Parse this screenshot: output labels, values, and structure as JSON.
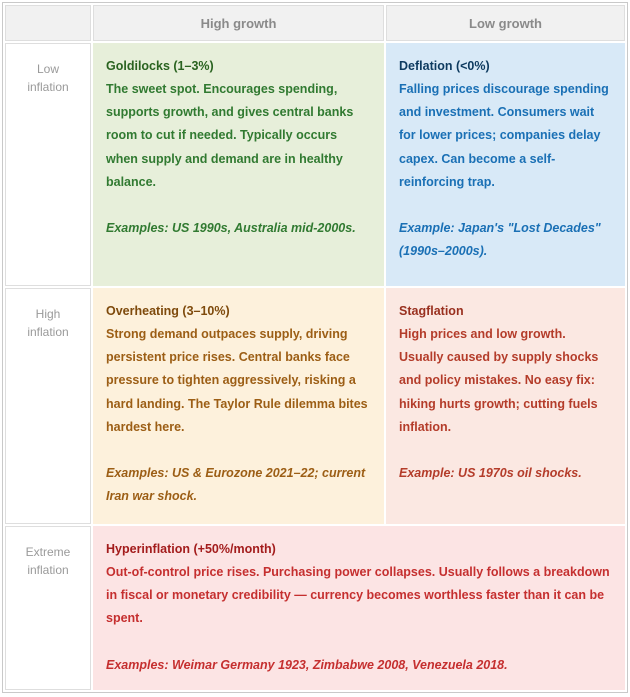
{
  "matrix": {
    "column_headers": [
      "High growth",
      "Low growth"
    ],
    "rows": [
      {
        "label": "Low inflation",
        "cells": [
          {
            "name": "goldilocks",
            "title": "Goldilocks (1–3%)",
            "body": "The sweet spot. Encourages spending, supports growth, and gives central banks room to cut if needed. Typically occurs when supply and demand are in healthy balance.",
            "examples": "Examples: US 1990s, Australia mid-2000s."
          },
          {
            "name": "deflation",
            "title": "Deflation (<0%)",
            "body": "Falling prices discourage spending and investment. Consumers wait for lower prices; companies delay capex. Can become a self-reinforcing trap.",
            "examples": "Example: Japan's \"Lost Decades\" (1990s–2000s)."
          }
        ]
      },
      {
        "label": "High inflation",
        "cells": [
          {
            "name": "overheating",
            "title": "Overheating (3–10%)",
            "body": "Strong demand outpaces supply, driving persistent price rises. Central banks face pressure to tighten aggressively, risking a hard landing. The Taylor Rule dilemma bites hardest here.",
            "examples": "Examples: US & Eurozone 2021–22; current Iran war shock."
          },
          {
            "name": "stagflation",
            "title": "Stagflation",
            "body": "High prices and low growth. Usually caused by supply shocks and policy mistakes. No easy fix: hiking hurts growth; cutting fuels inflation.",
            "examples": "Example: US 1970s oil shocks."
          }
        ]
      },
      {
        "label": "Extreme inflation",
        "cells": [
          {
            "name": "hyperinflation",
            "title": "Hyperinflation (+50%/month)",
            "body": "Out-of-control price rises. Purchasing power collapses. Usually follows a breakdown in fiscal or monetary credibility — currency becomes worthless faster than it can be spent.",
            "examples": "Examples: Weimar Germany 1923, Zimbabwe 2008, Venezuela 2018."
          }
        ]
      }
    ]
  },
  "colors": {
    "border": "#c9c9c9",
    "cell_border": "#dedede",
    "header_bg": "#f1f1f1",
    "header_text": "#8a8a8a",
    "label_text": "#9a9a9a",
    "goldilocks_bg": "#e7efda",
    "goldilocks_title": "#2a6320",
    "goldilocks_text": "#317a31",
    "deflation_bg": "#d8e9f7",
    "deflation_title": "#0d3a5f",
    "deflation_text": "#1a70b5",
    "overheating_bg": "#fdf1dc",
    "overheating_title": "#7e4a0c",
    "overheating_text": "#9c5e15",
    "stagflation_bg": "#fbe8e2",
    "stagflation_title": "#99301f",
    "stagflation_text": "#b43c2a",
    "hyperinflation_bg": "#fce4e4",
    "hyperinflation_title": "#a31c1c",
    "hyperinflation_text": "#c52f2f"
  }
}
